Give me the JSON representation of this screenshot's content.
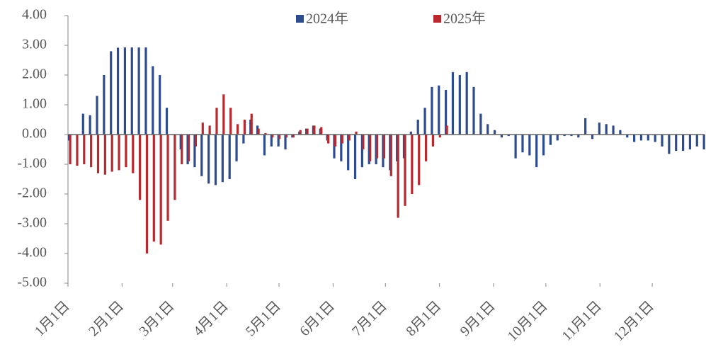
{
  "chart_data": {
    "type": "bar",
    "x": [
      0,
      4,
      8,
      12,
      16,
      20,
      24,
      28,
      32,
      36,
      40,
      44,
      48,
      52,
      56,
      60,
      64,
      68,
      72,
      76,
      80,
      84,
      88,
      92,
      96,
      100,
      104,
      108,
      112,
      116,
      120,
      124,
      128,
      132,
      136,
      140,
      144,
      148,
      152,
      156,
      160,
      164,
      168,
      172,
      176,
      180,
      184,
      188,
      192,
      196,
      200,
      204,
      208,
      212,
      216,
      220,
      224,
      228,
      232,
      236,
      240,
      244,
      248,
      252,
      256,
      260,
      264,
      268,
      272,
      276,
      280,
      284,
      288,
      292,
      296,
      300,
      304,
      308,
      312,
      316,
      320,
      324,
      328,
      332,
      336,
      340,
      344,
      348,
      352,
      356,
      360,
      364
    ],
    "series": [
      {
        "name": "2024年",
        "color": "#2e4b8f",
        "values": [
          -0.2,
          0.0,
          0.7,
          0.65,
          1.3,
          2.0,
          2.8,
          2.92,
          2.93,
          2.93,
          2.93,
          2.93,
          2.3,
          2.0,
          0.9,
          0.0,
          -0.5,
          -1.0,
          -1.1,
          -1.4,
          -1.65,
          -1.7,
          -1.6,
          -1.5,
          -0.9,
          -0.3,
          0.5,
          0.3,
          -0.7,
          -0.4,
          -0.4,
          -0.5,
          -0.1,
          0.1,
          0.2,
          0.3,
          0.2,
          -0.2,
          -0.8,
          -0.9,
          -1.2,
          -1.5,
          -1.1,
          -1.0,
          -1.0,
          -1.1,
          -1.2,
          -0.9,
          -0.8,
          0.1,
          0.5,
          0.9,
          1.6,
          1.65,
          1.5,
          2.1,
          2.0,
          2.1,
          1.6,
          0.7,
          0.35,
          0.15,
          -0.1,
          -0.05,
          -0.8,
          -0.6,
          -0.7,
          -1.1,
          -0.7,
          -0.35,
          -0.2,
          -0.05,
          -0.05,
          -0.1,
          0.55,
          -0.15,
          0.4,
          0.35,
          0.3,
          0.15,
          -0.1,
          -0.25,
          -0.2,
          -0.2,
          -0.25,
          -0.4,
          -0.65,
          -0.55,
          -0.55,
          -0.5,
          -0.4,
          -0.5
        ]
      },
      {
        "name": "2025年",
        "color": "#b8282e",
        "values": [
          -1.0,
          -1.05,
          -1.0,
          -1.1,
          -1.3,
          -1.35,
          -1.25,
          -1.2,
          -1.1,
          -1.3,
          -2.2,
          -4.0,
          -3.6,
          -3.7,
          -2.9,
          -2.2,
          -1.0,
          -0.9,
          -0.4,
          0.4,
          0.3,
          0.9,
          1.35,
          0.9,
          0.35,
          0.5,
          0.7,
          0.2,
          0.05,
          -0.1,
          -0.15,
          -0.1,
          -0.1,
          0.15,
          0.2,
          0.3,
          0.25,
          -0.3,
          -0.4,
          -0.3,
          -0.2,
          0.1,
          -0.5,
          -0.9,
          -0.8,
          -0.8,
          -1.4,
          -2.8,
          -2.4,
          -2.0,
          -1.7,
          -0.9,
          -0.4,
          -0.1,
          0.3,
          null,
          null,
          null,
          null,
          null,
          null,
          null,
          null,
          null,
          null,
          null,
          null,
          null,
          null,
          null,
          null,
          null,
          null,
          null,
          null,
          null,
          null,
          null,
          null,
          null,
          null,
          null,
          null,
          null,
          null,
          null,
          null,
          null,
          null,
          null,
          null,
          null
        ]
      }
    ],
    "xlim": [
      0,
      365
    ],
    "xticks": [
      {
        "value": 0,
        "label": "1月1日"
      },
      {
        "value": 31,
        "label": "2月1日"
      },
      {
        "value": 60,
        "label": "3月1日"
      },
      {
        "value": 91,
        "label": "4月1日"
      },
      {
        "value": 121,
        "label": "5月1日"
      },
      {
        "value": 152,
        "label": "6月1日"
      },
      {
        "value": 182,
        "label": "7月1日"
      },
      {
        "value": 213,
        "label": "8月1日"
      },
      {
        "value": 244,
        "label": "9月1日"
      },
      {
        "value": 274,
        "label": "10月1日"
      },
      {
        "value": 305,
        "label": "11月1日"
      },
      {
        "value": 335,
        "label": "12月1日"
      }
    ],
    "ylim": [
      -5,
      4
    ],
    "yticks": [
      {
        "value": 4,
        "label": "4.00"
      },
      {
        "value": 3,
        "label": "3.00"
      },
      {
        "value": 2,
        "label": "2.00"
      },
      {
        "value": 1,
        "label": "1.00"
      },
      {
        "value": 0,
        "label": "0.00"
      },
      {
        "value": -1,
        "label": "-1.00"
      },
      {
        "value": -2,
        "label": "-2.00"
      },
      {
        "value": -3,
        "label": "-3.00"
      },
      {
        "value": -4,
        "label": "-4.00"
      },
      {
        "value": -5,
        "label": "-5.00"
      }
    ]
  }
}
